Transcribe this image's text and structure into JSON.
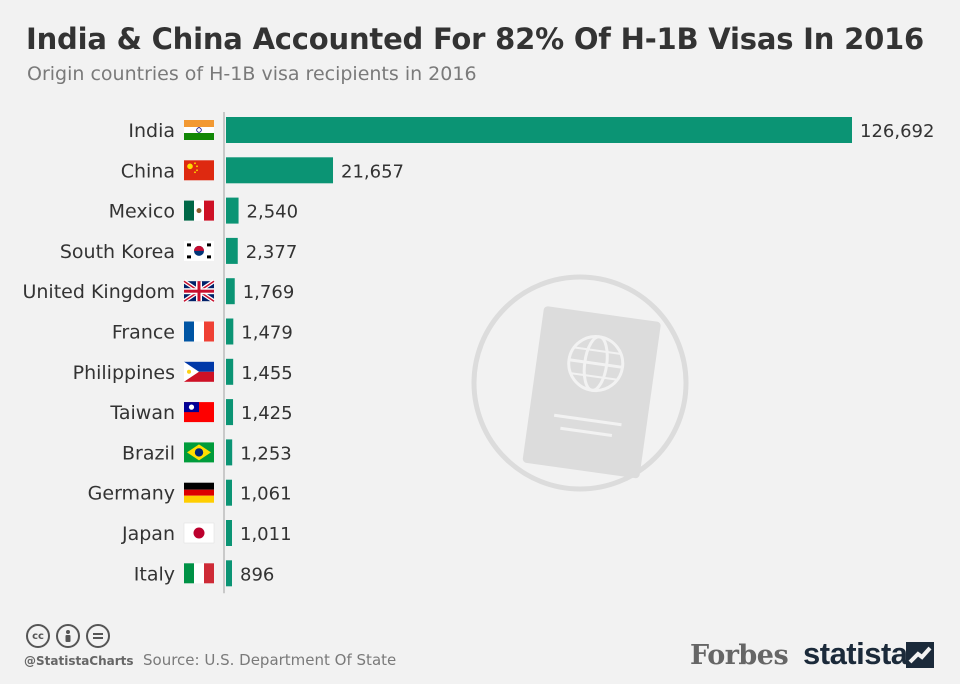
{
  "header": {
    "title": "India & China Accounted For 82% Of H-1B Visas In 2016",
    "subtitle": "Origin countries of H-1B visa recipients in 2016"
  },
  "footer": {
    "handle": "@StatistaCharts",
    "source": "Source: U.S. Department Of State",
    "partner_logo": "Forbes",
    "brand_logo": "statista",
    "icons": [
      "creative-commons-icon",
      "attribution-icon",
      "no-derivatives-icon"
    ]
  },
  "colors": {
    "bar": "#0b9474",
    "background": "#f2f2f2",
    "text": "#333333"
  },
  "chart_data": {
    "type": "bar",
    "orientation": "horizontal",
    "categories": [
      "India",
      "China",
      "Mexico",
      "South Korea",
      "United Kingdom",
      "France",
      "Philippines",
      "Taiwan",
      "Brazil",
      "Germany",
      "Japan",
      "Italy"
    ],
    "values": [
      126692,
      21657,
      2540,
      2377,
      1769,
      1479,
      1455,
      1425,
      1253,
      1061,
      1011,
      896
    ],
    "value_labels": [
      "126,692",
      "21,657",
      "2,540",
      "2,377",
      "1,769",
      "1,479",
      "1,455",
      "1,425",
      "1,253",
      "1,061",
      "1,011",
      "896"
    ],
    "flags": [
      "india-flag-icon",
      "china-flag-icon",
      "mexico-flag-icon",
      "south-korea-flag-icon",
      "uk-flag-icon",
      "france-flag-icon",
      "philippines-flag-icon",
      "taiwan-flag-icon",
      "brazil-flag-icon",
      "germany-flag-icon",
      "japan-flag-icon",
      "italy-flag-icon"
    ],
    "xlim": [
      0,
      126692
    ],
    "grid": false,
    "legend": "none",
    "background_icon": "passport-icon"
  }
}
